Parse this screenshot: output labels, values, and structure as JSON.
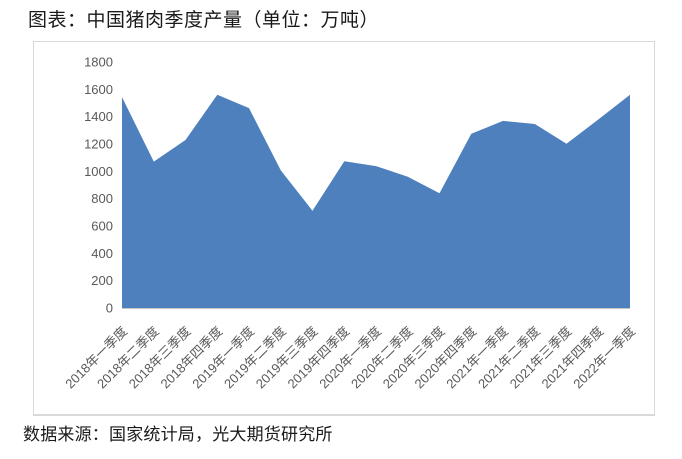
{
  "page": {
    "title": "图表：中国猪肉季度产量（单位：万吨）",
    "source_note": "数据来源：国家统计局，光大期货研究所"
  },
  "chart_data": {
    "type": "area",
    "title": "中国猪肉季度产量（单位：万吨）",
    "categories": [
      "2018年一季度",
      "2018年二季度",
      "2018年三季度",
      "2018年四季度",
      "2019年一季度",
      "2019年二季度",
      "2019年三季度",
      "2019年四季度",
      "2020年一季度",
      "2020年二季度",
      "2020年三季度",
      "2020年四季度",
      "2021年一季度",
      "2021年二季度",
      "2021年三季度",
      "2021年四季度",
      "2022年一季度"
    ],
    "values": [
      1543,
      1071,
      1229,
      1561,
      1463,
      1007,
      711,
      1074,
      1038,
      960,
      840,
      1275,
      1369,
      1346,
      1202,
      1379,
      1561
    ],
    "xlabel": "",
    "ylabel": "",
    "ylim": [
      0,
      1800
    ],
    "ytick_step": 200,
    "yticks": [
      0,
      200,
      400,
      600,
      800,
      1000,
      1200,
      1400,
      1600,
      1800
    ],
    "grid": false,
    "legend": "none",
    "x_label_rotation_deg": -45,
    "colors": {
      "area_fill": "#4d80bd",
      "axis_label": "#595959",
      "axis_line": "#c6c6c6",
      "panel_border": "#d9d9d9"
    }
  }
}
